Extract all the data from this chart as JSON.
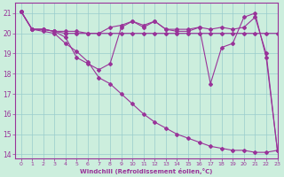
{
  "xlabel": "Windchill (Refroidissement éolien,°C)",
  "xlim": [
    -0.5,
    23
  ],
  "ylim": [
    13.8,
    21.5
  ],
  "yticks": [
    14,
    15,
    16,
    17,
    18,
    19,
    20,
    21
  ],
  "xticks": [
    0,
    1,
    2,
    3,
    4,
    5,
    6,
    7,
    8,
    9,
    10,
    11,
    12,
    13,
    14,
    15,
    16,
    17,
    18,
    19,
    20,
    21,
    22,
    23
  ],
  "bg_color": "#cceedd",
  "line_color": "#993399",
  "grid_color": "#99cccc",
  "line1_x": [
    0,
    1,
    2,
    3,
    4,
    5,
    6,
    7,
    8,
    9,
    10,
    11,
    12,
    13,
    14,
    15,
    16,
    17,
    18,
    19,
    20,
    21,
    22,
    23
  ],
  "line1_y": [
    21.1,
    20.2,
    20.2,
    20.1,
    20.1,
    20.1,
    20.0,
    20.0,
    20.0,
    20.0,
    20.0,
    20.0,
    20.0,
    20.0,
    20.0,
    20.0,
    20.0,
    20.0,
    20.0,
    20.0,
    20.0,
    20.0,
    20.0,
    20.0
  ],
  "line2_x": [
    0,
    1,
    2,
    3,
    4,
    5,
    6,
    7,
    8,
    9,
    10,
    11,
    12,
    13,
    14,
    15,
    16,
    17,
    18,
    19,
    20,
    21,
    22,
    23
  ],
  "line2_y": [
    21.1,
    20.2,
    20.2,
    20.1,
    19.8,
    18.8,
    18.5,
    18.2,
    18.5,
    20.3,
    20.6,
    20.3,
    20.6,
    20.2,
    20.1,
    20.1,
    20.3,
    17.5,
    19.3,
    19.5,
    20.8,
    21.0,
    18.8,
    14.2
  ],
  "line3_x": [
    0,
    1,
    2,
    3,
    4,
    5,
    6,
    7,
    8,
    9,
    10,
    11,
    12,
    13,
    14,
    15,
    16,
    17,
    18,
    19,
    20,
    21,
    22,
    23
  ],
  "line3_y": [
    21.1,
    20.2,
    20.2,
    20.1,
    20.0,
    20.0,
    20.0,
    20.0,
    20.3,
    20.4,
    20.6,
    20.4,
    20.6,
    20.2,
    20.2,
    20.2,
    20.3,
    20.2,
    20.3,
    20.2,
    20.3,
    20.8,
    19.0,
    14.2
  ],
  "line4_x": [
    0,
    1,
    2,
    3,
    4,
    5,
    6,
    7,
    8,
    9,
    10,
    11,
    12,
    13,
    14,
    15,
    16,
    17,
    18,
    19,
    20,
    21,
    22,
    23
  ],
  "line4_y": [
    21.1,
    20.2,
    20.1,
    20.0,
    19.5,
    19.1,
    18.6,
    17.8,
    17.5,
    17.0,
    16.5,
    16.0,
    15.6,
    15.3,
    15.0,
    14.8,
    14.6,
    14.4,
    14.3,
    14.2,
    14.2,
    14.1,
    14.1,
    14.2
  ]
}
